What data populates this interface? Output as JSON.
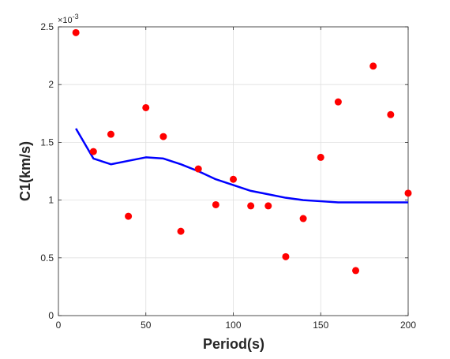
{
  "chart_data": {
    "type": "scatter",
    "xlabel": "Period(s)",
    "ylabel": "C1(km/s)",
    "y_exponent_label": "×10",
    "y_exponent_power": "-3",
    "xlim": [
      0,
      200
    ],
    "ylim": [
      0,
      0.0025
    ],
    "x_ticks": [
      0,
      50,
      100,
      150,
      200
    ],
    "x_tick_labels": [
      "0",
      "50",
      "100",
      "150",
      "200"
    ],
    "y_ticks": [
      0,
      0.0005,
      0.001,
      0.0015,
      0.002,
      0.0025
    ],
    "y_tick_labels": [
      "0",
      "0.5",
      "1",
      "1.5",
      "2",
      "2.5"
    ],
    "grid": true,
    "series": [
      {
        "kind": "scatter",
        "color": "#ff0000",
        "x": [
          10,
          20,
          30,
          40,
          50,
          60,
          70,
          80,
          90,
          100,
          110,
          120,
          130,
          140,
          150,
          160,
          170,
          180,
          190,
          200
        ],
        "y": [
          0.00245,
          0.00142,
          0.00157,
          0.00086,
          0.0018,
          0.00155,
          0.00073,
          0.00127,
          0.00096,
          0.00118,
          0.00095,
          0.00095,
          0.00051,
          0.00084,
          0.00137,
          0.00185,
          0.00039,
          0.00216,
          0.00174,
          0.00106
        ]
      },
      {
        "kind": "line",
        "color": "#0000ff",
        "x": [
          10,
          20,
          30,
          40,
          50,
          60,
          70,
          80,
          90,
          100,
          110,
          120,
          130,
          140,
          150,
          160,
          170,
          180,
          190,
          200
        ],
        "y": [
          0.00162,
          0.00136,
          0.00131,
          0.00134,
          0.00137,
          0.00136,
          0.00131,
          0.00125,
          0.00118,
          0.00113,
          0.00108,
          0.00105,
          0.00102,
          0.001,
          0.00099,
          0.00098,
          0.00098,
          0.00098,
          0.00098,
          0.00098
        ]
      }
    ]
  }
}
